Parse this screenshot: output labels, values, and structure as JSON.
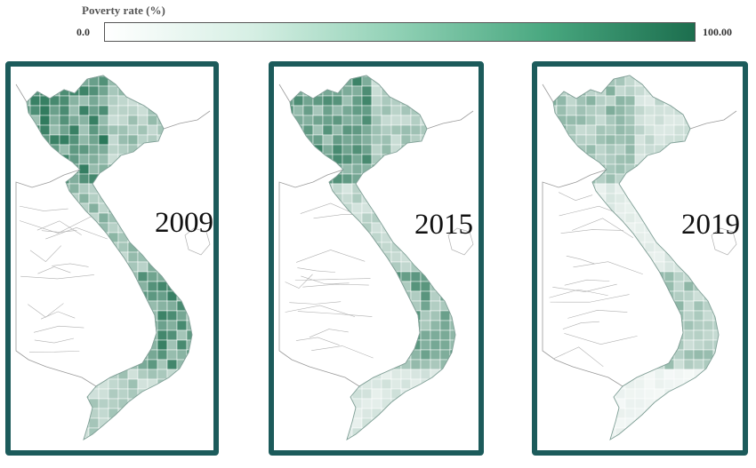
{
  "legend": {
    "title": "Poverty rate (%)",
    "min_label": "0.0",
    "max_label": "100.00",
    "min_value": 0,
    "max_value": 100,
    "color_low": "#ffffff",
    "color_high": "#1c6e4e"
  },
  "frame_color": "#1c5b5b",
  "maps": [
    {
      "year": "2009",
      "north": 0.75,
      "center": 0.45,
      "south_central": 0.7,
      "south": 0.35
    },
    {
      "year": "2015",
      "north": 0.7,
      "center": 0.3,
      "south_central": 0.6,
      "south": 0.18
    },
    {
      "year": "2019",
      "north": 0.45,
      "center": 0.15,
      "south_central": 0.4,
      "south": 0.08
    }
  ]
}
